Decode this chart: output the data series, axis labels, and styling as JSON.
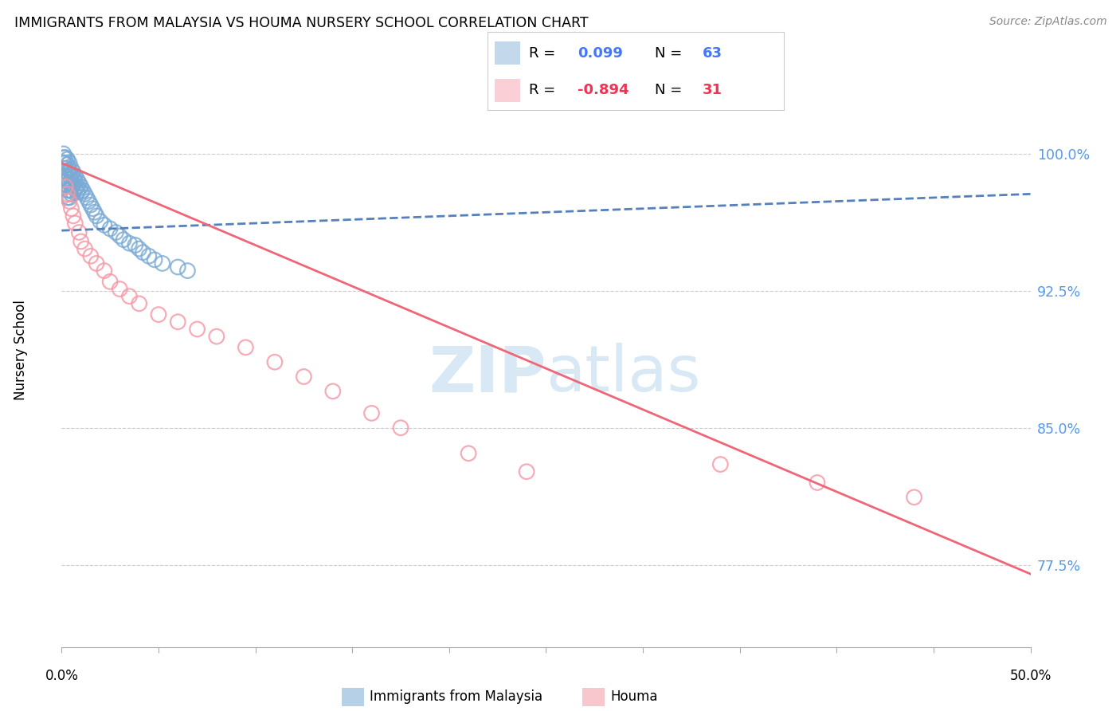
{
  "title": "IMMIGRANTS FROM MALAYSIA VS HOUMA NURSERY SCHOOL CORRELATION CHART",
  "source": "Source: ZipAtlas.com",
  "ylabel": "Nursery School",
  "yticks": [
    0.775,
    0.85,
    0.925,
    1.0
  ],
  "ytick_labels": [
    "77.5%",
    "85.0%",
    "92.5%",
    "100.0%"
  ],
  "xmin": 0.0,
  "xmax": 0.5,
  "ymin": 0.73,
  "ymax": 1.055,
  "blue_R": "0.099",
  "blue_N": "63",
  "pink_R": "-0.894",
  "pink_N": "31",
  "blue_color": "#7AAAD4",
  "pink_color": "#F497A4",
  "blue_line_color": "#5580BB",
  "pink_line_color": "#EE6677",
  "legend_label_blue": "Immigrants from Malaysia",
  "legend_label_pink": "Houma",
  "blue_scatter_x": [
    0.001,
    0.001,
    0.001,
    0.002,
    0.002,
    0.002,
    0.002,
    0.002,
    0.003,
    0.003,
    0.003,
    0.003,
    0.003,
    0.003,
    0.003,
    0.004,
    0.004,
    0.004,
    0.004,
    0.004,
    0.004,
    0.005,
    0.005,
    0.005,
    0.005,
    0.005,
    0.006,
    0.006,
    0.006,
    0.006,
    0.007,
    0.007,
    0.007,
    0.008,
    0.008,
    0.008,
    0.009,
    0.009,
    0.01,
    0.01,
    0.011,
    0.012,
    0.013,
    0.014,
    0.015,
    0.016,
    0.017,
    0.018,
    0.02,
    0.022,
    0.025,
    0.028,
    0.03,
    0.032,
    0.035,
    0.038,
    0.04,
    0.042,
    0.045,
    0.048,
    0.052,
    0.06,
    0.065
  ],
  "blue_scatter_y": [
    1.0,
    0.998,
    0.995,
    0.998,
    0.995,
    0.992,
    0.988,
    0.985,
    0.997,
    0.994,
    0.99,
    0.986,
    0.983,
    0.98,
    0.976,
    0.995,
    0.991,
    0.988,
    0.984,
    0.98,
    0.976,
    0.992,
    0.989,
    0.986,
    0.982,
    0.978,
    0.99,
    0.987,
    0.983,
    0.979,
    0.988,
    0.985,
    0.981,
    0.986,
    0.982,
    0.979,
    0.984,
    0.981,
    0.982,
    0.979,
    0.98,
    0.978,
    0.976,
    0.974,
    0.972,
    0.97,
    0.968,
    0.966,
    0.963,
    0.961,
    0.959,
    0.957,
    0.955,
    0.953,
    0.951,
    0.95,
    0.948,
    0.946,
    0.944,
    0.942,
    0.94,
    0.938,
    0.936
  ],
  "pink_scatter_x": [
    0.002,
    0.003,
    0.004,
    0.005,
    0.006,
    0.007,
    0.009,
    0.01,
    0.012,
    0.015,
    0.018,
    0.022,
    0.025,
    0.03,
    0.035,
    0.04,
    0.05,
    0.06,
    0.07,
    0.08,
    0.095,
    0.11,
    0.125,
    0.14,
    0.16,
    0.175,
    0.21,
    0.24,
    0.34,
    0.39,
    0.44
  ],
  "pink_scatter_y": [
    0.982,
    0.978,
    0.974,
    0.97,
    0.966,
    0.962,
    0.957,
    0.952,
    0.948,
    0.944,
    0.94,
    0.936,
    0.93,
    0.926,
    0.922,
    0.918,
    0.912,
    0.908,
    0.904,
    0.9,
    0.894,
    0.886,
    0.878,
    0.87,
    0.858,
    0.85,
    0.836,
    0.826,
    0.83,
    0.82,
    0.812
  ],
  "blue_trend_x": [
    0.0,
    0.5
  ],
  "blue_trend_y": [
    0.958,
    0.978
  ],
  "pink_trend_x": [
    0.0,
    0.5
  ],
  "pink_trend_y": [
    0.995,
    0.77
  ]
}
